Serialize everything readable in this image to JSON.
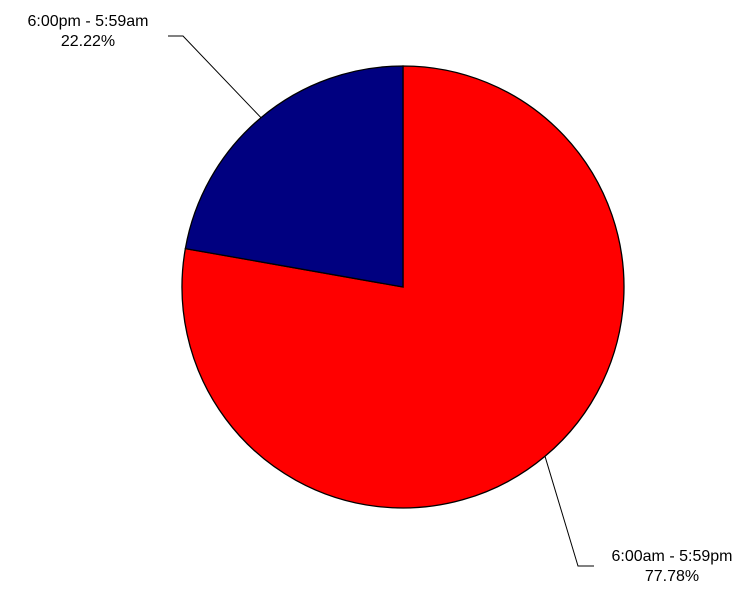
{
  "chart_data": {
    "type": "pie",
    "slices": [
      {
        "label": "6:00am - 5:59pm",
        "value": 77.78,
        "value_label": "77.78%",
        "color": "#FF0000"
      },
      {
        "label": "6:00pm - 5:59am",
        "value": 22.22,
        "value_label": "22.22%",
        "color": "#000080"
      }
    ],
    "start_angle_deg": 0,
    "direction": "clockwise",
    "legend": "none",
    "label_style": "callout lines"
  }
}
